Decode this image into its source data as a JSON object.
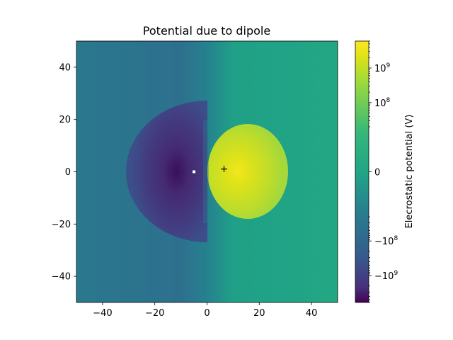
{
  "chart_data": {
    "type": "heatmap",
    "title": "Potential due to dipole",
    "xlabel": "",
    "ylabel": "",
    "xlim": [
      -50,
      50
    ],
    "ylim": [
      -50,
      50
    ],
    "x_ticks": [
      -40,
      -20,
      0,
      20,
      40
    ],
    "y_ticks": [
      -40,
      -20,
      0,
      20,
      40
    ],
    "x_tick_labels": [
      "−40",
      "−20",
      "0",
      "20",
      "40"
    ],
    "y_tick_labels": [
      "−40",
      "−20",
      "0",
      "20",
      "40"
    ],
    "charges": [
      {
        "x": -5,
        "y": 0,
        "sign": "negative",
        "marker": "square",
        "marker_color": "#ffffff"
      },
      {
        "x": 5,
        "y": 0,
        "sign": "positive"
      }
    ],
    "annotations": [
      {
        "x": 6.5,
        "y": 1.2,
        "text": "+"
      }
    ],
    "colorbar": {
      "label": "Elecrostatic potential (V)",
      "colormap": "viridis",
      "scale": "symlog",
      "ticks": [
        1000000000.0,
        100000000.0,
        0,
        -100000000.0,
        -1000000000.0
      ],
      "tick_labels": [
        {
          "base": "10",
          "exp": "9",
          "sign": ""
        },
        {
          "base": "10",
          "exp": "8",
          "sign": ""
        },
        {
          "base": "0",
          "exp": "",
          "sign": ""
        },
        {
          "base": "10",
          "exp": "8",
          "sign": "−"
        },
        {
          "base": "10",
          "exp": "9",
          "sign": "−"
        }
      ]
    },
    "grid": false,
    "legend": "none"
  }
}
